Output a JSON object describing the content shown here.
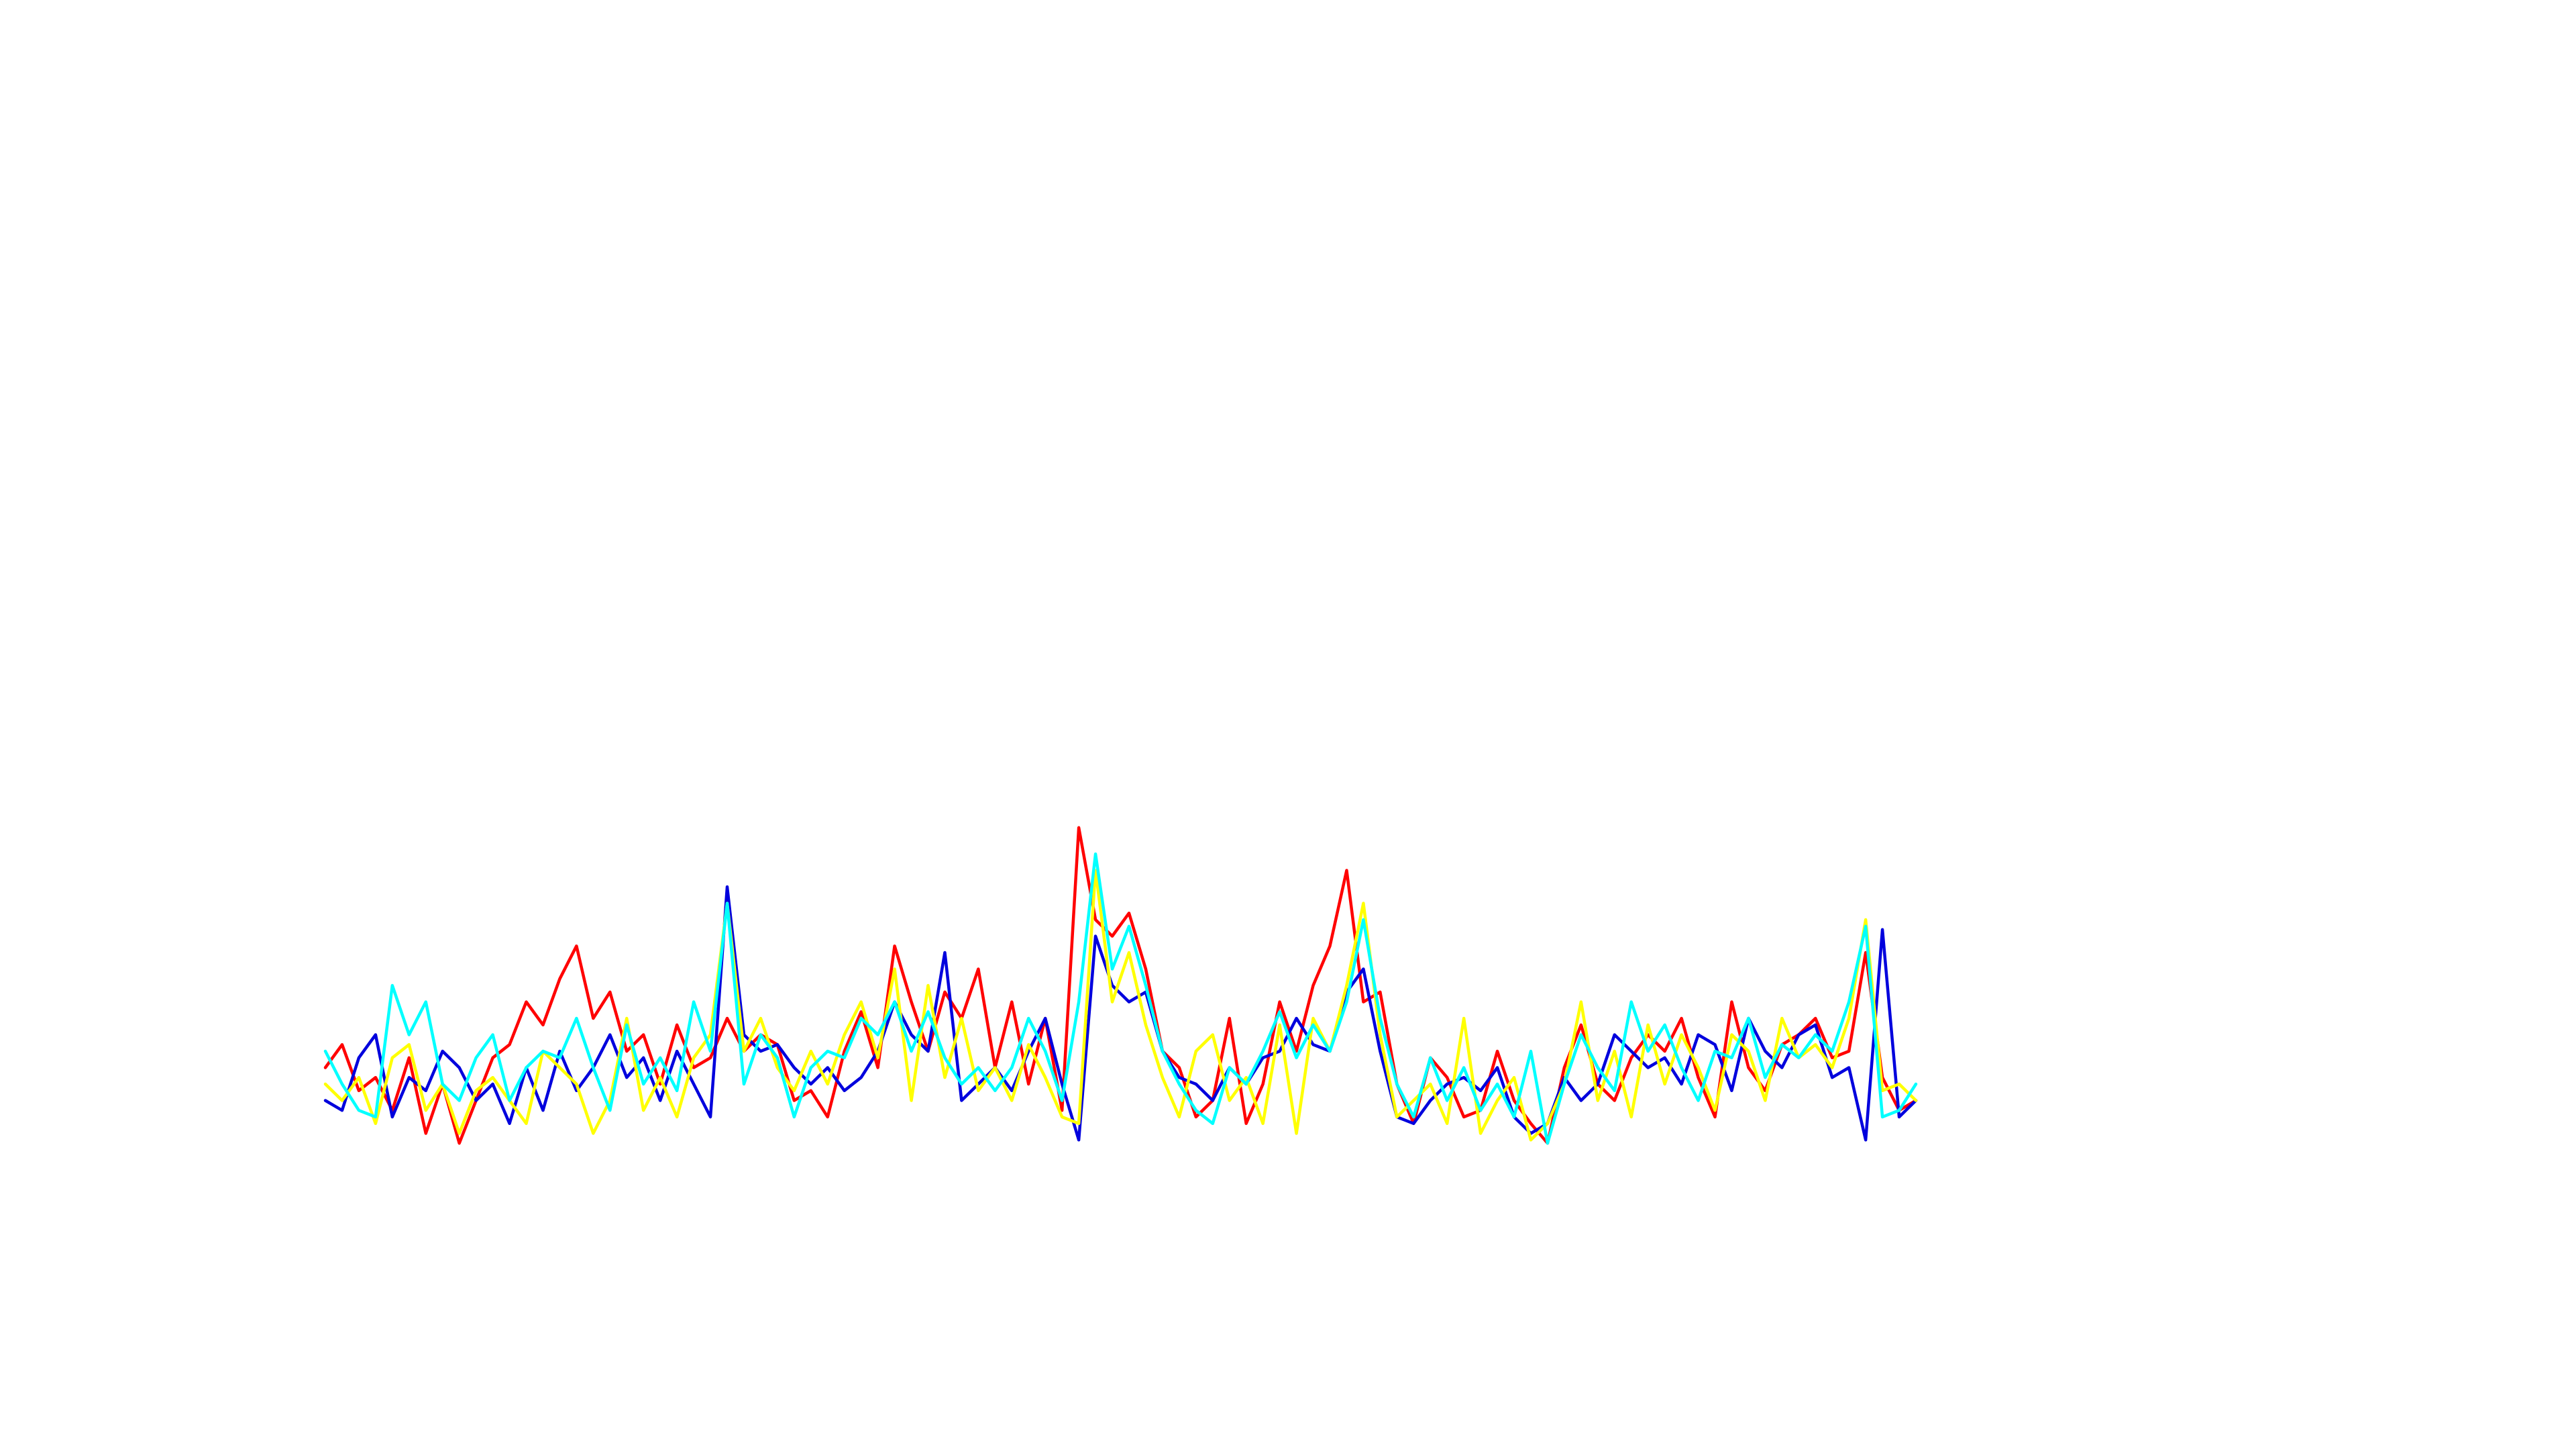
{
  "chart_data": {
    "type": "line",
    "ylim": [
      0,
      100
    ],
    "series": [
      {
        "color": "#ff0000",
        "values": [
          25,
          32,
          18,
          22,
          12,
          28,
          5,
          20,
          2,
          15,
          28,
          32,
          45,
          38,
          52,
          62,
          40,
          48,
          30,
          35,
          20,
          38,
          25,
          28,
          40,
          30,
          35,
          32,
          15,
          18,
          10,
          30,
          42,
          25,
          62,
          45,
          30,
          48,
          40,
          55,
          25,
          45,
          20,
          40,
          12,
          98,
          70,
          65,
          72,
          55,
          30,
          25,
          10,
          15,
          40,
          8,
          20,
          45,
          30,
          50,
          62,
          85,
          45,
          48,
          20,
          8,
          28,
          22,
          10,
          12,
          30,
          15,
          8,
          2,
          25,
          38,
          20,
          15,
          28,
          35,
          30,
          40,
          22,
          10,
          45,
          25,
          18,
          32,
          35,
          40,
          28,
          30,
          60,
          22,
          12,
          15
        ]
      },
      {
        "color": "#0000dd",
        "values": [
          15,
          12,
          28,
          35,
          10,
          22,
          18,
          30,
          25,
          15,
          20,
          8,
          25,
          12,
          30,
          18,
          25,
          35,
          22,
          28,
          15,
          30,
          20,
          10,
          80,
          35,
          30,
          32,
          25,
          20,
          25,
          18,
          22,
          30,
          45,
          35,
          30,
          60,
          15,
          20,
          25,
          18,
          30,
          40,
          20,
          3,
          65,
          50,
          45,
          48,
          30,
          22,
          20,
          15,
          25,
          20,
          28,
          30,
          40,
          32,
          30,
          48,
          55,
          30,
          10,
          8,
          15,
          20,
          22,
          18,
          25,
          10,
          5,
          8,
          22,
          15,
          20,
          35,
          30,
          25,
          28,
          20,
          35,
          32,
          18,
          40,
          30,
          25,
          35,
          38,
          22,
          25,
          3,
          67,
          10,
          15
        ]
      },
      {
        "color": "#ffff00",
        "values": [
          20,
          15,
          22,
          8,
          28,
          32,
          12,
          20,
          5,
          18,
          22,
          15,
          8,
          30,
          25,
          20,
          5,
          15,
          40,
          12,
          22,
          10,
          28,
          35,
          75,
          30,
          40,
          25,
          18,
          30,
          20,
          35,
          45,
          28,
          55,
          15,
          50,
          22,
          40,
          18,
          25,
          15,
          32,
          22,
          10,
          8,
          85,
          45,
          60,
          38,
          22,
          10,
          30,
          35,
          15,
          22,
          8,
          38,
          5,
          40,
          30,
          50,
          75,
          35,
          10,
          15,
          20,
          8,
          40,
          5,
          15,
          22,
          3,
          8,
          20,
          45,
          15,
          30,
          10,
          38,
          20,
          35,
          25,
          12,
          35,
          30,
          15,
          40,
          28,
          32,
          25,
          40,
          70,
          18,
          20,
          15
        ]
      },
      {
        "color": "#00ffff",
        "values": [
          30,
          20,
          12,
          10,
          50,
          35,
          45,
          20,
          15,
          28,
          35,
          15,
          25,
          30,
          28,
          40,
          25,
          12,
          38,
          20,
          28,
          18,
          45,
          30,
          75,
          20,
          35,
          28,
          10,
          25,
          30,
          28,
          40,
          35,
          45,
          30,
          42,
          28,
          20,
          25,
          18,
          25,
          40,
          30,
          15,
          45,
          90,
          55,
          68,
          50,
          30,
          20,
          12,
          8,
          25,
          20,
          30,
          42,
          28,
          38,
          30,
          45,
          70,
          40,
          20,
          10,
          28,
          15,
          25,
          12,
          20,
          10,
          30,
          2,
          20,
          35,
          25,
          18,
          45,
          30,
          38,
          25,
          15,
          30,
          28,
          40,
          22,
          32,
          28,
          35,
          30,
          45,
          68,
          10,
          12,
          20
        ]
      }
    ]
  }
}
